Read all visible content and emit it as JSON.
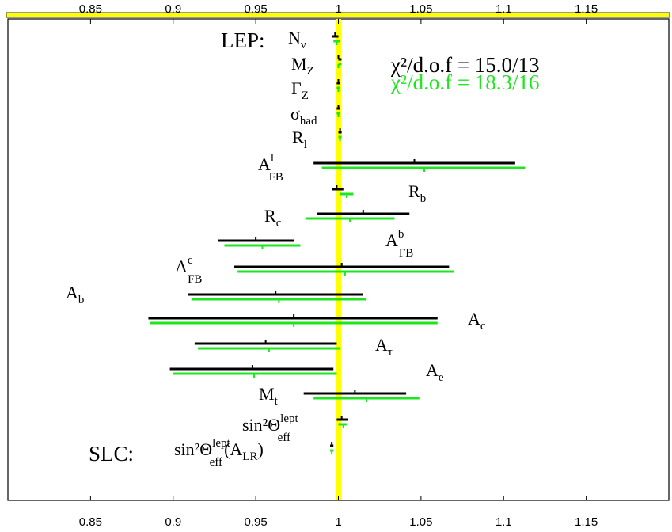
{
  "chart_data": {
    "type": "scatter",
    "xlim": [
      0.8,
      1.2
    ],
    "x_ticks": [
      "0.85",
      "0.9",
      "0.95",
      "1",
      "1.05",
      "1.1",
      "1.15"
    ],
    "x_tick_values": [
      0.85,
      0.9,
      0.95,
      1.0,
      1.05,
      1.1,
      1.15
    ],
    "reference_line": 1.0,
    "reference_color": "#ffff00",
    "grid": false,
    "group_labels": {
      "lep": "LEP:",
      "slc": "SLC:"
    },
    "fit_stats": [
      {
        "text": "χ²/d.o.f = 15.0/13",
        "color": "#000000"
      },
      {
        "text": "χ²/d.o.f = 18.3/16",
        "color": "#1ee61e"
      }
    ],
    "series": [
      {
        "color": "#000000"
      },
      {
        "color": "#1ee61e"
      }
    ],
    "observables": [
      {
        "id": "nnu",
        "label_main": "N",
        "label_sup": "",
        "label_sub": "ν",
        "black": {
          "center": 0.998,
          "low": 0.996,
          "high": 1.0
        },
        "green": {
          "center": 0.999,
          "low": 0.997,
          "high": 1.001
        }
      },
      {
        "id": "mz",
        "label_main": "M",
        "label_sup": "",
        "label_sub": "Z",
        "black": {
          "center": 1.0,
          "low": 1.0,
          "high": 1.0
        },
        "green": {
          "center": 1.0,
          "low": 1.0,
          "high": 1.0
        }
      },
      {
        "id": "gz",
        "label_main": "Γ",
        "label_sup": "",
        "label_sub": "Z",
        "black": {
          "center": 1.0,
          "low": 0.999,
          "high": 1.001
        },
        "green": {
          "center": 1.0,
          "low": 0.999,
          "high": 1.001
        }
      },
      {
        "id": "sighad",
        "label_main": "σ",
        "label_sup": "",
        "label_sub": "had",
        "black": {
          "center": 1.0,
          "low": 0.999,
          "high": 1.001
        },
        "green": {
          "center": 1.0,
          "low": 0.999,
          "high": 1.001
        }
      },
      {
        "id": "rl",
        "label_main": "R",
        "label_sup": "",
        "label_sub": "l",
        "black": {
          "center": 1.001,
          "low": 1.0,
          "high": 1.002
        },
        "green": {
          "center": 1.001,
          "low": 1.0,
          "high": 1.002
        }
      },
      {
        "id": "afbl",
        "label_main": "A",
        "label_sup": "l",
        "label_sub": "FB",
        "black": {
          "center": 1.046,
          "low": 0.985,
          "high": 1.107
        },
        "green": {
          "center": 1.052,
          "low": 0.99,
          "high": 1.113
        }
      },
      {
        "id": "rb",
        "label_main": "R",
        "label_sup": "",
        "label_sub": "b",
        "black": {
          "center": 0.999,
          "low": 0.996,
          "high": 1.003
        },
        "green": {
          "center": 1.005,
          "low": 1.001,
          "high": 1.009
        }
      },
      {
        "id": "rc",
        "label_main": "R",
        "label_sup": "",
        "label_sub": "c",
        "black": {
          "center": 1.015,
          "low": 0.987,
          "high": 1.043
        },
        "green": {
          "center": 1.007,
          "low": 0.98,
          "high": 1.034
        }
      },
      {
        "id": "afbb",
        "label_main": "A",
        "label_sup": "b",
        "label_sub": "FB",
        "black": {
          "center": 0.95,
          "low": 0.927,
          "high": 0.973
        },
        "green": {
          "center": 0.954,
          "low": 0.931,
          "high": 0.977
        }
      },
      {
        "id": "afbc",
        "label_main": "A",
        "label_sup": "c",
        "label_sub": "FB",
        "black": {
          "center": 1.002,
          "low": 0.937,
          "high": 1.067
        },
        "green": {
          "center": 1.004,
          "low": 0.939,
          "high": 1.07
        }
      },
      {
        "id": "ab",
        "label_main": "A",
        "label_sup": "",
        "label_sub": "b",
        "black": {
          "center": 0.962,
          "low": 0.909,
          "high": 1.015
        },
        "green": {
          "center": 0.964,
          "low": 0.911,
          "high": 1.017
        }
      },
      {
        "id": "ac",
        "label_main": "A",
        "label_sup": "",
        "label_sub": "c",
        "black": {
          "center": 0.973,
          "low": 0.885,
          "high": 1.06
        },
        "green": {
          "center": 0.973,
          "low": 0.886,
          "high": 1.06
        }
      },
      {
        "id": "atau",
        "label_main": "A",
        "label_sup": "",
        "label_sub": "τ",
        "black": {
          "center": 0.956,
          "low": 0.913,
          "high": 0.999
        },
        "green": {
          "center": 0.958,
          "low": 0.915,
          "high": 1.001
        }
      },
      {
        "id": "ae",
        "label_main": "A",
        "label_sup": "",
        "label_sub": "e",
        "black": {
          "center": 0.948,
          "low": 0.898,
          "high": 0.997
        },
        "green": {
          "center": 0.949,
          "low": 0.9,
          "high": 0.999
        }
      },
      {
        "id": "mt",
        "label_main": "M",
        "label_sup": "",
        "label_sub": "t",
        "black": {
          "center": 1.01,
          "low": 0.979,
          "high": 1.041
        },
        "green": {
          "center": 1.017,
          "low": 0.985,
          "high": 1.049
        }
      },
      {
        "id": "sin2",
        "label_main": "sin²Θ",
        "label_sup": "lept",
        "label_sub": "eff",
        "black": {
          "center": 1.002,
          "low": 0.999,
          "high": 1.006
        },
        "green": {
          "center": 1.003,
          "low": 1.0,
          "high": 1.005
        }
      },
      {
        "id": "sin2alr",
        "label_main": "sin²Θ",
        "label_sup": "lept",
        "label_sub": "eff",
        "label_tail": "(A",
        "label_tail_sub": "LR",
        "label_tail_end": ")",
        "black": {
          "center": 0.996,
          "low": 0.995,
          "high": 0.997
        },
        "green": {
          "center": 0.996,
          "low": 0.995,
          "high": 0.997
        }
      }
    ]
  }
}
